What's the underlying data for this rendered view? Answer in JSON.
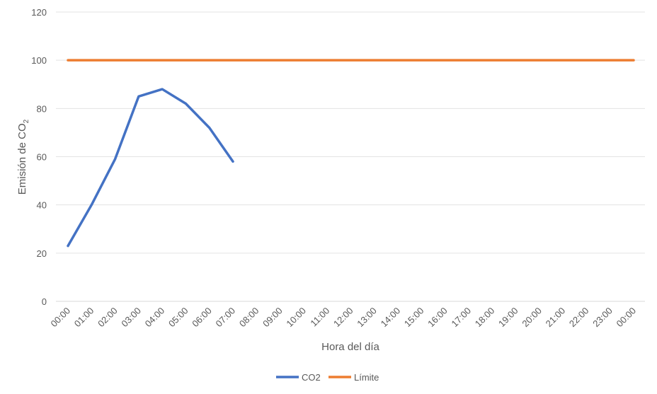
{
  "chart_data": {
    "type": "line",
    "title": "",
    "xlabel": "Hora del día",
    "ylabel": {
      "main": "Emisión de CO",
      "subscript": "2"
    },
    "categories": [
      "00:00",
      "01:00",
      "02:00",
      "03:00",
      "04:00",
      "05:00",
      "06:00",
      "07:00",
      "08:00",
      "09:00",
      "10:00",
      "11:00",
      "12:00",
      "13:00",
      "14:00",
      "15:00",
      "16:00",
      "17:00",
      "18:00",
      "19:00",
      "20:00",
      "21:00",
      "22:00",
      "23:00",
      "00:00"
    ],
    "ylim": [
      0,
      120
    ],
    "yticks": [
      0,
      20,
      40,
      60,
      80,
      100,
      120
    ],
    "grid": true,
    "legend_position": "bottom",
    "series": [
      {
        "name": "CO2",
        "color": "#4472C4",
        "values": [
          23,
          40,
          59,
          85,
          88,
          82,
          72,
          58,
          null,
          null,
          null,
          null,
          null,
          null,
          null,
          null,
          null,
          null,
          null,
          null,
          null,
          null,
          null,
          null,
          null
        ]
      },
      {
        "name": "Límite",
        "color": "#ED7D31",
        "values": [
          100,
          100,
          100,
          100,
          100,
          100,
          100,
          100,
          100,
          100,
          100,
          100,
          100,
          100,
          100,
          100,
          100,
          100,
          100,
          100,
          100,
          100,
          100,
          100,
          100
        ]
      }
    ]
  }
}
